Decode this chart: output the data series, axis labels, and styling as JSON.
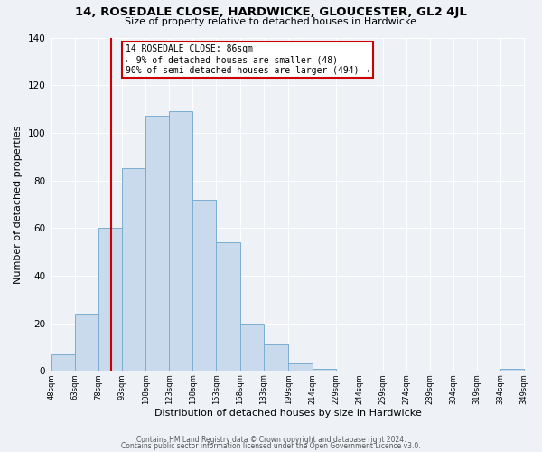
{
  "title": "14, ROSEDALE CLOSE, HARDWICKE, GLOUCESTER, GL2 4JL",
  "subtitle": "Size of property relative to detached houses in Hardwicke",
  "xlabel": "Distribution of detached houses by size in Hardwicke",
  "ylabel": "Number of detached properties",
  "bar_edges": [
    48,
    63,
    78,
    93,
    108,
    123,
    138,
    153,
    168,
    183,
    199,
    214,
    229,
    244,
    259,
    274,
    289,
    304,
    319,
    334,
    349
  ],
  "bar_heights": [
    7,
    24,
    60,
    85,
    107,
    109,
    72,
    54,
    20,
    11,
    3,
    1,
    0,
    0,
    0,
    0,
    0,
    0,
    0,
    1
  ],
  "bar_color": "#c8daec",
  "bar_edge_color": "#7aaed0",
  "vline_x": 86,
  "vline_color": "#cc0000",
  "annotation_text_line1": "14 ROSEDALE CLOSE: 86sqm",
  "annotation_text_line2": "← 9% of detached houses are smaller (48)",
  "annotation_text_line3": "90% of semi-detached houses are larger (494) →",
  "annotation_box_color": "#ffffff",
  "annotation_box_edgecolor": "#cc0000",
  "ylim": [
    0,
    140
  ],
  "yticks": [
    0,
    20,
    40,
    60,
    80,
    100,
    120,
    140
  ],
  "tick_labels": [
    "48sqm",
    "63sqm",
    "78sqm",
    "93sqm",
    "108sqm",
    "123sqm",
    "138sqm",
    "153sqm",
    "168sqm",
    "183sqm",
    "199sqm",
    "214sqm",
    "229sqm",
    "244sqm",
    "259sqm",
    "274sqm",
    "289sqm",
    "304sqm",
    "319sqm",
    "334sqm",
    "349sqm"
  ],
  "footer1": "Contains HM Land Registry data © Crown copyright and database right 2024.",
  "footer2": "Contains public sector information licensed under the Open Government Licence v3.0.",
  "background_color": "#eef2f7",
  "grid_color": "#ffffff"
}
